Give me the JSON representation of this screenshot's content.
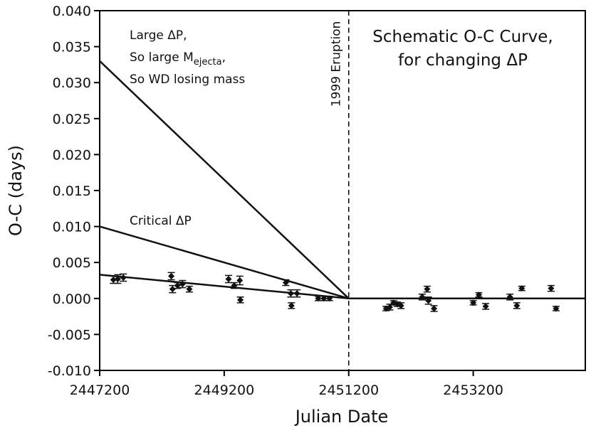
{
  "chart_data": {
    "type": "scatter",
    "title": "Schematic O-C Curve, for changing ΔP",
    "title_lines": [
      "Schematic O-C Curve,",
      "for changing ΔP"
    ],
    "xlabel": "Julian Date",
    "ylabel": "O-C (days)",
    "xlim": [
      2447200,
      2455000
    ],
    "ylim": [
      -0.01,
      0.04
    ],
    "x_ticks": [
      2447200,
      2449200,
      2451200,
      2453200
    ],
    "x_tick_labels": [
      "2447200",
      "2449200",
      "2451200",
      "2453200"
    ],
    "y_ticks": [
      -0.01,
      -0.005,
      0.0,
      0.005,
      0.01,
      0.015,
      0.02,
      0.025,
      0.03,
      0.035,
      0.04
    ],
    "y_tick_labels": [
      "-0.010",
      "-0.005",
      "0.000",
      "0.005",
      "0.010",
      "0.015",
      "0.020",
      "0.025",
      "0.030",
      "0.035",
      "0.040"
    ],
    "grid": false,
    "eruption": {
      "x": 2451200,
      "label": "1999 Eruption"
    },
    "lines": [
      {
        "name": "large",
        "x": [
          2447200,
          2451200
        ],
        "y": [
          0.033,
          0.0
        ]
      },
      {
        "name": "critical",
        "x": [
          2447200,
          2451200
        ],
        "y": [
          0.01,
          0.0
        ]
      },
      {
        "name": "fit",
        "x": [
          2447200,
          2451200
        ],
        "y": [
          0.0033,
          0.0
        ]
      },
      {
        "name": "post-eruption",
        "x": [
          2451200,
          2455000
        ],
        "y": [
          0.0,
          0.0
        ]
      }
    ],
    "annotations": {
      "large_line1": "Large ΔP,",
      "large_line2_prefix": "So large M",
      "large_line2_sub": "ejecta",
      "large_line2_suffix": ",",
      "large_line3": "So WD losing mass",
      "critical": "Critical ΔP"
    },
    "points": [
      {
        "x": 2447420,
        "y": 0.0026,
        "err": 0.0005
      },
      {
        "x": 2447490,
        "y": 0.0027,
        "err": 0.0006
      },
      {
        "x": 2447580,
        "y": 0.0029,
        "err": 0.0005
      },
      {
        "x": 2448350,
        "y": 0.0031,
        "err": 0.0005
      },
      {
        "x": 2448370,
        "y": 0.0013,
        "err": 0.0005
      },
      {
        "x": 2448450,
        "y": 0.0018,
        "err": 0.0004
      },
      {
        "x": 2448530,
        "y": 0.002,
        "err": 0.0005
      },
      {
        "x": 2448640,
        "y": 0.0013,
        "err": 0.0004
      },
      {
        "x": 2449270,
        "y": 0.0027,
        "err": 0.0005
      },
      {
        "x": 2449360,
        "y": 0.0018,
        "err": 0.0004
      },
      {
        "x": 2449450,
        "y": 0.0025,
        "err": 0.0006
      },
      {
        "x": 2449460,
        "y": -0.0002,
        "err": 0.0004
      },
      {
        "x": 2450190,
        "y": 0.0022,
        "err": 0.0004
      },
      {
        "x": 2450270,
        "y": 0.0007,
        "err": 0.0005
      },
      {
        "x": 2450280,
        "y": -0.001,
        "err": 0.0004
      },
      {
        "x": 2450370,
        "y": 0.0007,
        "err": 0.0005
      },
      {
        "x": 2450710,
        "y": 0.0,
        "err": 0.0003
      },
      {
        "x": 2450800,
        "y": 0.0,
        "err": 0.0003
      },
      {
        "x": 2450890,
        "y": 0.0,
        "err": 0.0003
      },
      {
        "x": 2451800,
        "y": -0.0014,
        "err": 0.0003
      },
      {
        "x": 2451860,
        "y": -0.0012,
        "err": 0.0004
      },
      {
        "x": 2451920,
        "y": -0.0006,
        "err": 0.0003
      },
      {
        "x": 2451980,
        "y": -0.0008,
        "err": 0.0003
      },
      {
        "x": 2452040,
        "y": -0.001,
        "err": 0.0004
      },
      {
        "x": 2452380,
        "y": 0.0002,
        "err": 0.0004
      },
      {
        "x": 2452460,
        "y": 0.0013,
        "err": 0.0004
      },
      {
        "x": 2452480,
        "y": -0.0003,
        "err": 0.0005
      },
      {
        "x": 2452570,
        "y": -0.0014,
        "err": 0.0004
      },
      {
        "x": 2453200,
        "y": -0.0006,
        "err": 0.0003
      },
      {
        "x": 2453290,
        "y": 0.0005,
        "err": 0.0003
      },
      {
        "x": 2453400,
        "y": -0.0011,
        "err": 0.0004
      },
      {
        "x": 2453790,
        "y": 0.0002,
        "err": 0.0004
      },
      {
        "x": 2453900,
        "y": -0.001,
        "err": 0.0004
      },
      {
        "x": 2453980,
        "y": 0.0014,
        "err": 0.0003
      },
      {
        "x": 2454450,
        "y": 0.0014,
        "err": 0.0004
      },
      {
        "x": 2454530,
        "y": -0.0014,
        "err": 0.0003
      }
    ]
  }
}
